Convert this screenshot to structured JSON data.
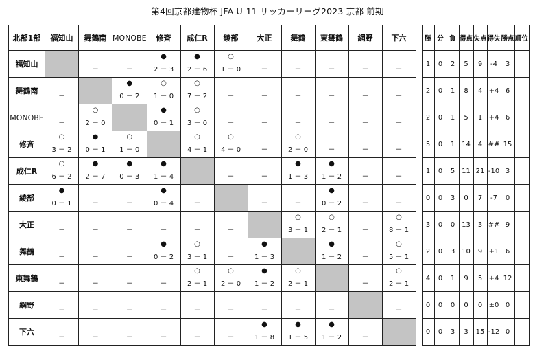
{
  "title": "第4回京都建物杯 JFA U-11 サッカーリーグ2023 京都 前期",
  "corner_label": "北部1部",
  "teams": [
    "福知山",
    "舞鶴南",
    "MONOBE",
    "修斉",
    "成仁R",
    "綾部",
    "大正",
    "舞鶴",
    "東舞鶴",
    "網野",
    "下六"
  ],
  "stat_headers": [
    "勝",
    "分",
    "負",
    "得点",
    "失点",
    "得失",
    "勝点",
    "順位"
  ],
  "win_mark": "○",
  "loss_mark": "●",
  "empty_mark": "－",
  "results": [
    [
      null,
      "-",
      "-",
      {
        "m": "L",
        "s": "2 － 3"
      },
      {
        "m": "L",
        "s": "2 － 6"
      },
      {
        "m": "W",
        "s": "1 － 0"
      },
      "-",
      "-",
      "-",
      "-",
      "-"
    ],
    [
      "-",
      null,
      {
        "m": "L",
        "s": "0 － 2"
      },
      {
        "m": "W",
        "s": "1 － 0"
      },
      {
        "m": "W",
        "s": "7 － 2"
      },
      "-",
      "-",
      "-",
      "-",
      "-",
      "-"
    ],
    [
      "-",
      {
        "m": "W",
        "s": "2 － 0"
      },
      null,
      {
        "m": "L",
        "s": "0 － 1"
      },
      {
        "m": "W",
        "s": "3 － 0"
      },
      "-",
      "-",
      "-",
      "-",
      "-",
      "-"
    ],
    [
      {
        "m": "W",
        "s": "3 － 2"
      },
      {
        "m": "L",
        "s": "0 － 1"
      },
      {
        "m": "W",
        "s": "1 － 0"
      },
      null,
      {
        "m": "W",
        "s": "4 － 1"
      },
      {
        "m": "W",
        "s": "4 － 0"
      },
      "-",
      {
        "m": "W",
        "s": "2 － 0"
      },
      "-",
      "-",
      "-"
    ],
    [
      {
        "m": "W",
        "s": "6 － 2"
      },
      {
        "m": "L",
        "s": "2 － 7"
      },
      {
        "m": "L",
        "s": "0 － 3"
      },
      {
        "m": "L",
        "s": "1 － 4"
      },
      null,
      "-",
      "-",
      {
        "m": "L",
        "s": "1 － 3"
      },
      {
        "m": "L",
        "s": "1 － 2"
      },
      "-",
      "-"
    ],
    [
      {
        "m": "L",
        "s": "0 － 1"
      },
      "-",
      "-",
      {
        "m": "L",
        "s": "0 － 4"
      },
      "-",
      null,
      "-",
      "-",
      {
        "m": "L",
        "s": "0 － 2"
      },
      "-",
      "-"
    ],
    [
      "-",
      "-",
      "-",
      "-",
      "-",
      "-",
      null,
      {
        "m": "W",
        "s": "3 － 1"
      },
      {
        "m": "W",
        "s": "2 － 1"
      },
      "-",
      {
        "m": "W",
        "s": "8 － 1"
      }
    ],
    [
      "-",
      "-",
      "-",
      {
        "m": "L",
        "s": "0 － 2"
      },
      {
        "m": "W",
        "s": "3 － 1"
      },
      "-",
      {
        "m": "L",
        "s": "1 － 3"
      },
      null,
      {
        "m": "L",
        "s": "1 － 2"
      },
      "-",
      {
        "m": "W",
        "s": "5 － 1"
      }
    ],
    [
      "-",
      "-",
      "-",
      "-",
      {
        "m": "W",
        "s": "2 － 1"
      },
      {
        "m": "W",
        "s": "2 － 0"
      },
      {
        "m": "L",
        "s": "1 － 2"
      },
      {
        "m": "W",
        "s": "2 － 1"
      },
      null,
      "-",
      {
        "m": "W",
        "s": "2 － 1"
      }
    ],
    [
      "-",
      "-",
      "-",
      "-",
      "-",
      "-",
      "-",
      "-",
      "-",
      null,
      "-"
    ],
    [
      "-",
      "-",
      "-",
      "-",
      "-",
      "-",
      {
        "m": "L",
        "s": "1 － 8"
      },
      {
        "m": "L",
        "s": "1 － 5"
      },
      {
        "m": "L",
        "s": "1 － 2"
      },
      "-",
      null
    ]
  ],
  "stats": [
    [
      "1",
      "0",
      "2",
      "5",
      "9",
      "-4",
      "3",
      ""
    ],
    [
      "2",
      "0",
      "1",
      "8",
      "4",
      "+4",
      "6",
      ""
    ],
    [
      "2",
      "0",
      "1",
      "5",
      "1",
      "+4",
      "6",
      ""
    ],
    [
      "5",
      "0",
      "1",
      "14",
      "4",
      "##",
      "15",
      ""
    ],
    [
      "1",
      "0",
      "5",
      "11",
      "21",
      "-10",
      "3",
      ""
    ],
    [
      "0",
      "0",
      "3",
      "0",
      "7",
      "-7",
      "0",
      ""
    ],
    [
      "3",
      "0",
      "0",
      "13",
      "3",
      "##",
      "9",
      ""
    ],
    [
      "2",
      "0",
      "3",
      "10",
      "9",
      "+1",
      "6",
      ""
    ],
    [
      "4",
      "0",
      "1",
      "9",
      "5",
      "+4",
      "12",
      ""
    ],
    [
      "0",
      "0",
      "0",
      "0",
      "0",
      "±0",
      "0",
      ""
    ],
    [
      "0",
      "0",
      "3",
      "3",
      "15",
      "-12",
      "0",
      ""
    ]
  ],
  "colors": {
    "self_cell": "#c4c4c4",
    "border": "#222222"
  }
}
